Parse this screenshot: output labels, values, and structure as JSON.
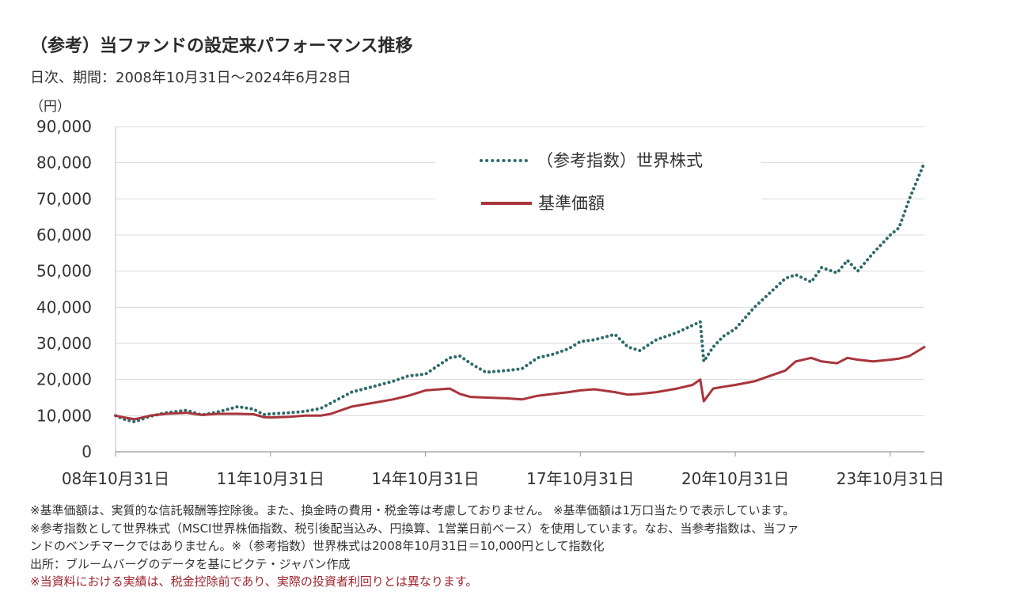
{
  "title": "（参考）当ファンドの設定来パフォーマンス推移",
  "subtitle": "日次、期間：2008年10月31日～2024年6月28日",
  "unit_label": "（円）",
  "colors": {
    "index": "#2f6b6b",
    "nav": "#a8353c",
    "grid": "#d9d9d9"
  },
  "notes": [
    "※基準価額は、実質的な信託報酬等控除後。また、換金時の費用・税金等は考慮しておりません。 ※基準価額は1万口当たりで表示しています。",
    "※参考指数として世界株式（MSCI世界株価指数、税引後配当込み、円換算、1営業日前ベース）を使用しています。なお、当参考指数は、当ファ",
    "ンドのベンチマークではありません。※（参考指数）世界株式は2008年10月31日＝10,000円として指数化",
    "出所：ブルームバーグのデータを基にピクテ・ジャパン作成",
    "※当資料における実績は、税金控除前であり、実際の投資者利回りとは異なります。"
  ],
  "chart_data": {
    "type": "line",
    "ylim": [
      0,
      90000
    ],
    "yticks": [
      "90,000",
      "80,000",
      "70,000",
      "60,000",
      "50,000",
      "40,000",
      "30,000",
      "20,000",
      "10,000",
      "0"
    ],
    "xticks": [
      "08年10月31日",
      "11年10月31日",
      "14年10月31日",
      "17年10月31日",
      "20年10月31日",
      "23年10月31日"
    ],
    "x_start": 2008.83,
    "x_end": 2024.49,
    "legend_position": "top-center",
    "series": [
      {
        "name": "（参考指数）世界株式",
        "style": "dotted",
        "x": [
          2008.83,
          2009.0,
          2009.2,
          2009.5,
          2009.8,
          2010.2,
          2010.5,
          2010.8,
          2011.2,
          2011.5,
          2011.7,
          2011.83,
          2012.2,
          2012.5,
          2012.8,
          2013.0,
          2013.4,
          2013.8,
          2014.2,
          2014.5,
          2014.83,
          2015.3,
          2015.5,
          2015.7,
          2016.0,
          2016.4,
          2016.7,
          2017.0,
          2017.3,
          2017.6,
          2017.83,
          2018.1,
          2018.5,
          2018.75,
          2018.98,
          2019.3,
          2019.7,
          2020.0,
          2020.15,
          2020.22,
          2020.4,
          2020.6,
          2020.83,
          2021.2,
          2021.5,
          2021.8,
          2022.0,
          2022.3,
          2022.5,
          2022.8,
          2023.0,
          2023.2,
          2023.5,
          2023.83,
          2024.0,
          2024.2,
          2024.49
        ],
        "values": [
          10000,
          9000,
          8300,
          9800,
          10800,
          11500,
          10200,
          11000,
          12500,
          11800,
          10300,
          10500,
          10800,
          11200,
          12000,
          13500,
          16500,
          18000,
          19500,
          21000,
          21500,
          26000,
          26500,
          24500,
          22000,
          22500,
          23000,
          26000,
          27000,
          28500,
          30500,
          31000,
          32500,
          29000,
          28000,
          31000,
          33000,
          35000,
          36000,
          25000,
          29000,
          32000,
          34000,
          40000,
          44000,
          48000,
          49000,
          47000,
          51000,
          49500,
          53000,
          50000,
          55000,
          60000,
          62000,
          70000,
          80000
        ]
      },
      {
        "name": "基準価額",
        "style": "solid",
        "x": [
          2008.83,
          2009.0,
          2009.2,
          2009.5,
          2009.8,
          2010.2,
          2010.5,
          2010.8,
          2011.2,
          2011.5,
          2011.7,
          2011.83,
          2012.2,
          2012.5,
          2012.8,
          2013.0,
          2013.4,
          2013.8,
          2014.2,
          2014.5,
          2014.83,
          2015.3,
          2015.5,
          2015.7,
          2016.0,
          2016.4,
          2016.7,
          2017.0,
          2017.3,
          2017.6,
          2017.83,
          2018.1,
          2018.5,
          2018.75,
          2018.98,
          2019.3,
          2019.7,
          2020.0,
          2020.15,
          2020.22,
          2020.4,
          2020.6,
          2020.83,
          2021.2,
          2021.5,
          2021.8,
          2022.0,
          2022.3,
          2022.5,
          2022.8,
          2023.0,
          2023.2,
          2023.5,
          2023.83,
          2024.0,
          2024.2,
          2024.49
        ],
        "values": [
          10000,
          9500,
          9000,
          10000,
          10500,
          10800,
          10200,
          10500,
          10500,
          10400,
          9600,
          9500,
          9700,
          10000,
          10000,
          10500,
          12500,
          13500,
          14500,
          15500,
          17000,
          17500,
          16000,
          15200,
          15000,
          14800,
          14500,
          15500,
          16000,
          16500,
          17000,
          17300,
          16500,
          15800,
          16000,
          16500,
          17500,
          18500,
          20000,
          14000,
          17500,
          18000,
          18500,
          19500,
          21000,
          22500,
          25000,
          26000,
          25000,
          24500,
          26000,
          25500,
          25000,
          25500,
          25800,
          26500,
          29000
        ]
      }
    ]
  }
}
